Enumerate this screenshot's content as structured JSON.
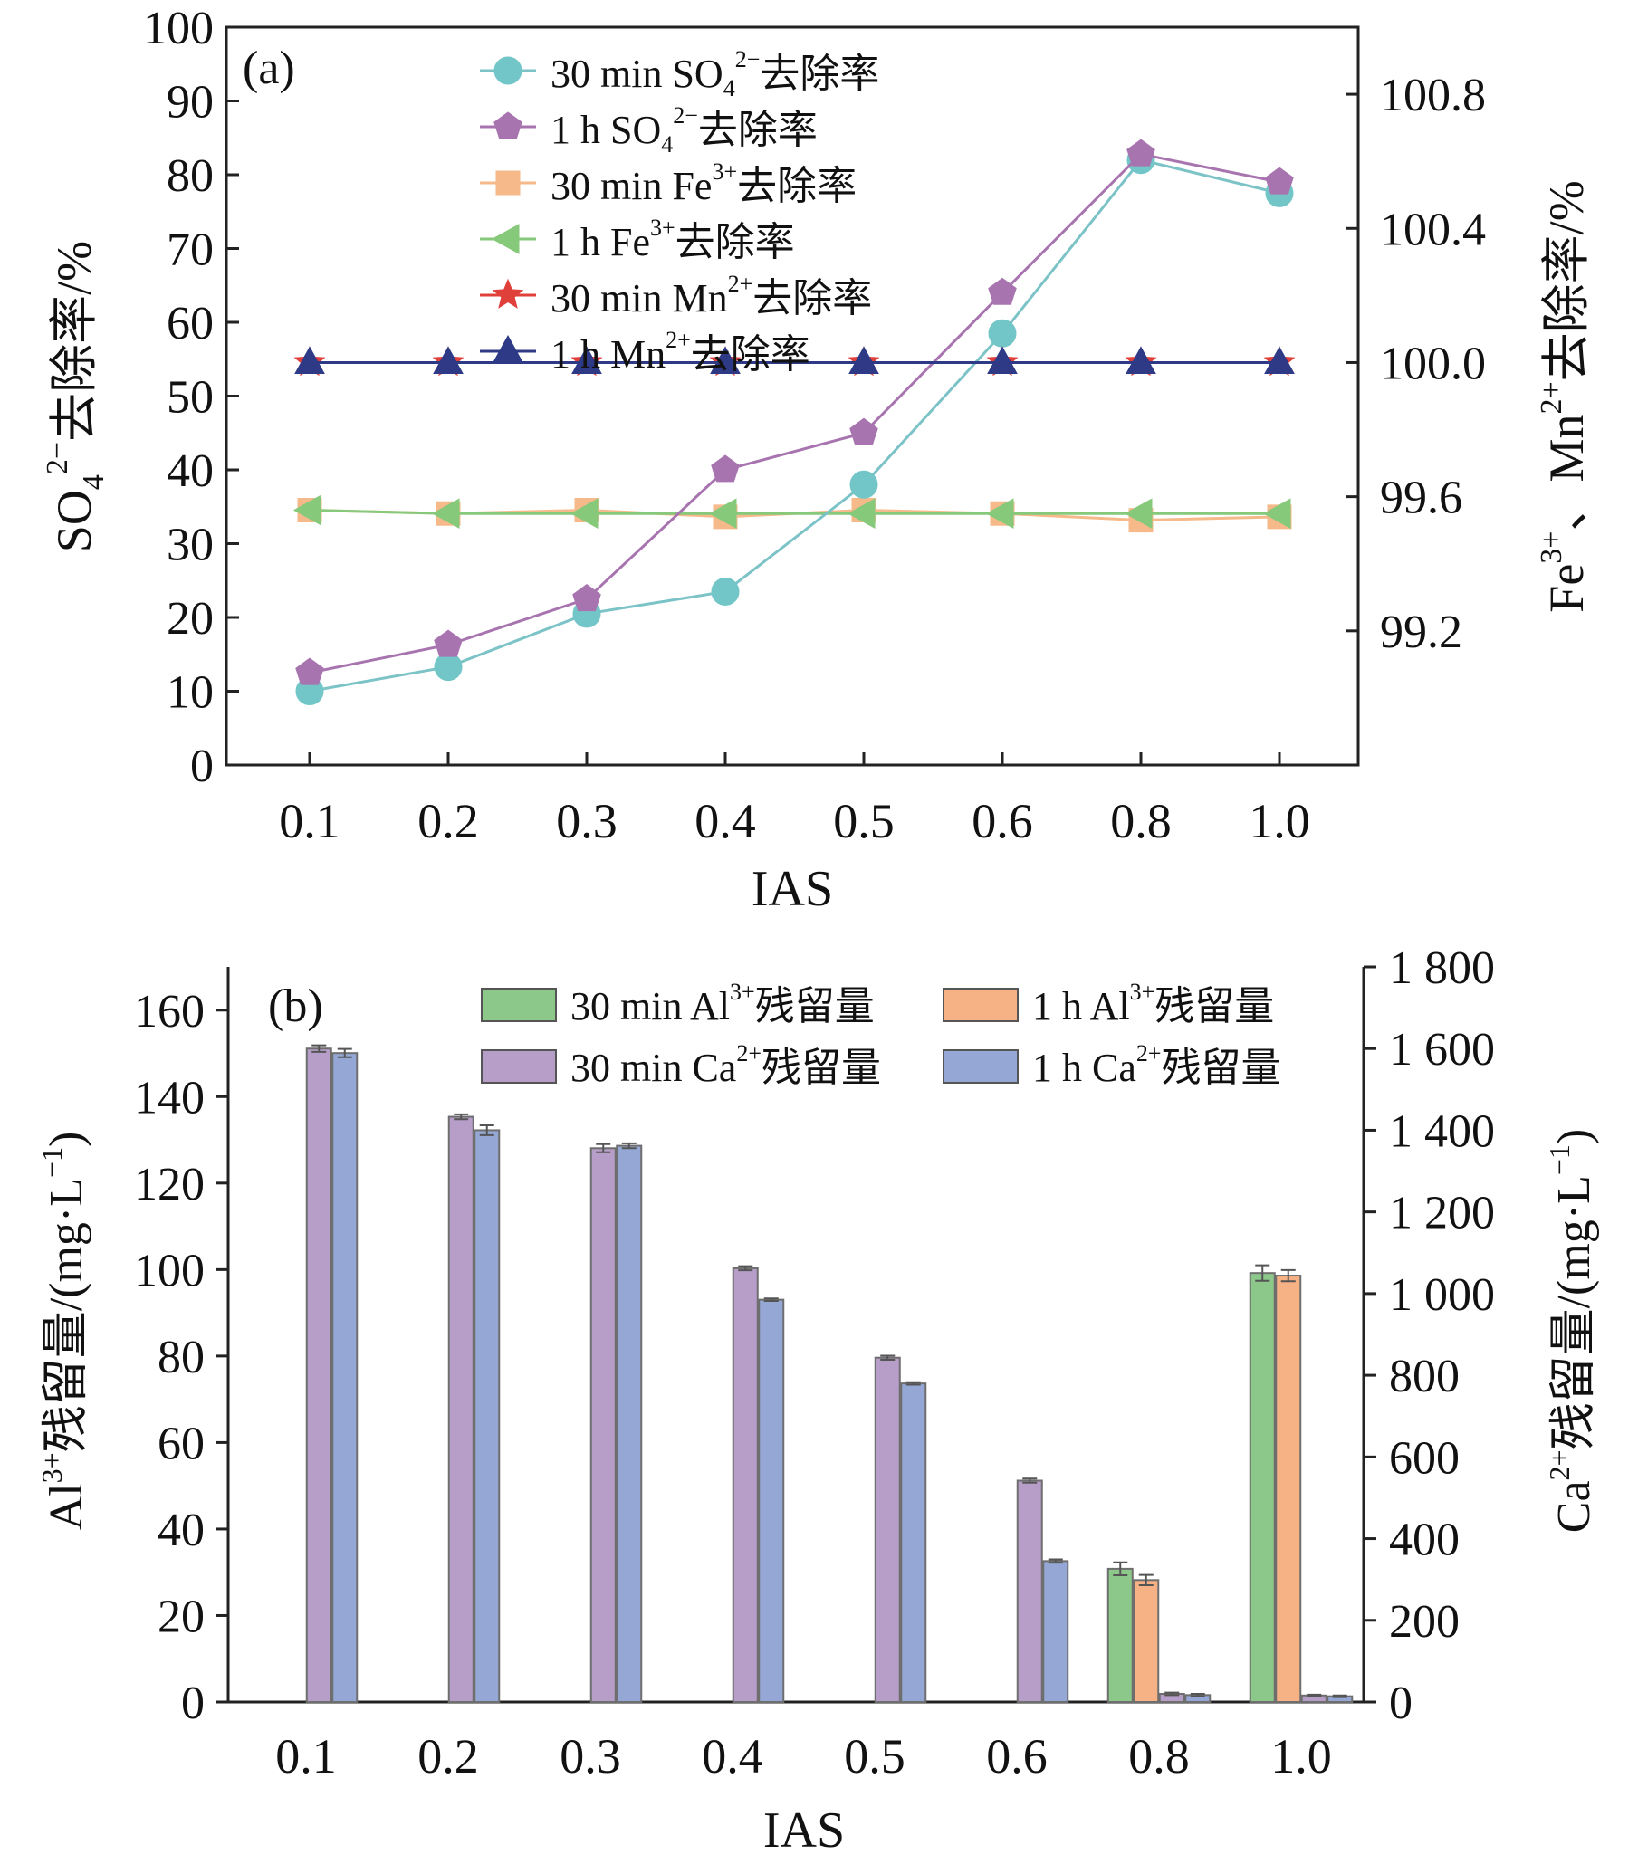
{
  "chart_data": [
    {
      "panel_label": "(a)",
      "type": "line",
      "categories": [
        "0.1",
        "0.2",
        "0.3",
        "0.4",
        "0.5",
        "0.6",
        "0.8",
        "1.0"
      ],
      "xlabel": "IAS",
      "ylabel": {
        "base": "SO",
        "sub": "4",
        "sup": "2−",
        "tail": "去除率/%"
      },
      "ylim": [
        0,
        100
      ],
      "yticks": [
        0,
        10,
        20,
        30,
        40,
        50,
        60,
        70,
        80,
        90,
        100
      ],
      "y2label": {
        "ion1": "Fe",
        "sup1": "3+",
        "sep": "、",
        "ion2": "Mn",
        "sup2": "2+",
        "tail": "去除率/%"
      },
      "y2lim": [
        98.8,
        101.0
      ],
      "y2ticks": [
        "99.2",
        "99.6",
        "100.0",
        "100.4",
        "100.8"
      ],
      "legend_position": "top-center",
      "series": [
        {
          "key": "so4_30",
          "axis": "left",
          "marker": "circle",
          "color": "#73C6C8",
          "line_color": "#7CC3C7",
          "label": {
            "pre": "30 min SO",
            "sub": "4",
            "sup": "2−",
            "post": "去除率"
          },
          "values": [
            10.0,
            13.3,
            20.5,
            23.5,
            38.0,
            58.5,
            82.0,
            77.5
          ]
        },
        {
          "key": "so4_1h",
          "axis": "left",
          "marker": "pentagon",
          "color": "#A874B0",
          "line_color": "#A874B0",
          "label": {
            "pre": "1 h SO",
            "sub": "4",
            "sup": "2−",
            "post": "去除率"
          },
          "values": [
            12.5,
            16.3,
            22.5,
            40.0,
            45.0,
            64.0,
            82.8,
            79.0
          ]
        },
        {
          "key": "fe_30",
          "axis": "right",
          "marker": "square",
          "color": "#F6B98A",
          "line_color": "#F6B98A",
          "label": {
            "pre": "30 min Fe",
            "sub": "",
            "sup": "3+",
            "post": "去除率"
          },
          "values": [
            99.56,
            99.55,
            99.56,
            99.54,
            99.56,
            99.55,
            99.53,
            99.54
          ]
        },
        {
          "key": "fe_1h",
          "axis": "right",
          "marker": "triangle-left",
          "color": "#86C97A",
          "line_color": "#86C97A",
          "label": {
            "pre": "1 h Fe",
            "sub": "",
            "sup": "3+",
            "post": "去除率"
          },
          "values": [
            99.56,
            99.55,
            99.55,
            99.55,
            99.55,
            99.55,
            99.55,
            99.55
          ]
        },
        {
          "key": "mn_30",
          "axis": "right",
          "marker": "star",
          "color": "#E0403A",
          "line_color": "#E0403A",
          "label": {
            "pre": "30 min Mn",
            "sub": "",
            "sup": "2+",
            "post": "去除率"
          },
          "values": [
            100.0,
            100.0,
            100.0,
            100.0,
            100.0,
            100.0,
            100.0,
            100.0
          ]
        },
        {
          "key": "mn_1h",
          "axis": "right",
          "marker": "triangle-up",
          "color": "#2F3A87",
          "line_color": "#2F3A87",
          "label": {
            "pre": "1 h Mn",
            "sub": "",
            "sup": "2+",
            "post": "去除率"
          },
          "values": [
            100.0,
            100.0,
            100.0,
            100.0,
            100.0,
            100.0,
            100.0,
            100.0
          ]
        }
      ]
    },
    {
      "panel_label": "(b)",
      "type": "bar",
      "categories": [
        "0.1",
        "0.2",
        "0.3",
        "0.4",
        "0.5",
        "0.6",
        "0.8",
        "1.0"
      ],
      "xlabel": "IAS",
      "ylabel": {
        "ion": "Al",
        "sup": "3+",
        "tail": "残留量/(mg·L",
        "exp": "−1",
        "close": ")"
      },
      "ylim": [
        0,
        170
      ],
      "yticks": [
        0,
        20,
        40,
        60,
        80,
        100,
        120,
        140,
        160
      ],
      "y2label": {
        "ion": "Ca",
        "sup": "2+",
        "tail": "残留量/(mg·L",
        "exp": "−1",
        "close": ")"
      },
      "y2lim": [
        0,
        1800
      ],
      "y2ticks": [
        "0",
        "200",
        "400",
        "600",
        "800",
        "1 000",
        "1 200",
        "1 400",
        "1 600",
        "1 800"
      ],
      "legend_position": "top-right",
      "series": [
        {
          "key": "al_30",
          "axis": "left",
          "color": "#8DC88B",
          "label": {
            "pre": "30 min Al",
            "sup": "3+",
            "post": "残留量"
          },
          "values": [
            0,
            0,
            0,
            0,
            0,
            0,
            30.8,
            99.2
          ],
          "errors": [
            0,
            0,
            0,
            0,
            0,
            0,
            1.5,
            1.8
          ]
        },
        {
          "key": "al_1h",
          "axis": "left",
          "color": "#F6B185",
          "label": {
            "pre": "1 h Al",
            "sup": "3+",
            "post": "残留量"
          },
          "values": [
            0,
            0,
            0,
            0,
            0,
            0,
            28.2,
            98.6
          ],
          "errors": [
            0,
            0,
            0,
            0,
            0,
            0,
            1.2,
            1.3
          ]
        },
        {
          "key": "ca_30",
          "axis": "right",
          "color": "#B79EC9",
          "label": {
            "pre": "30 min Ca",
            "sup": "2+",
            "post": "残留量"
          },
          "values": [
            1600,
            1433,
            1356,
            1062,
            843,
            542,
            20,
            16
          ],
          "errors": [
            8,
            6,
            10,
            5,
            5,
            5,
            3,
            2
          ]
        },
        {
          "key": "ca_1h",
          "axis": "right",
          "color": "#95A8D5",
          "label": {
            "pre": "1 h Ca",
            "sup": "2+",
            "post": "残留量"
          },
          "values": [
            1589,
            1400,
            1362,
            985,
            780,
            345,
            17,
            14
          ],
          "errors": [
            10,
            12,
            6,
            3,
            3,
            4,
            3,
            2
          ]
        }
      ]
    }
  ]
}
